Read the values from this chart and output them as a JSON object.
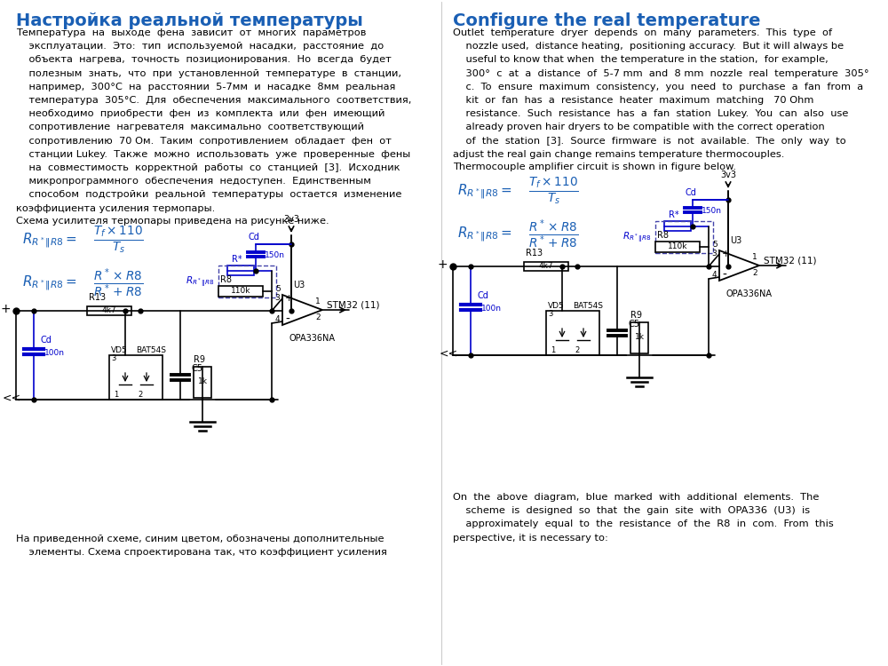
{
  "bg_color": "#ffffff",
  "left_title": "Настройка реальной температуры",
  "left_title_color": "#1a5fb4",
  "right_title": "Configure the real temperature",
  "right_title_color": "#1a5fb4",
  "circuit_color": "#000000",
  "circuit_blue": "#0000cc",
  "formula_color": "#1a5fb4",
  "divider_color": "#cccccc",
  "left_body_lines": [
    "Температура  на  выходе  фена  зависит  от  многих  параметров",
    "    эксплуатации.  Это:  тип  используемой  насадки,  расстояние  до",
    "    объекта  нагрева,  точность  позиционирования.  Но  всегда  будет",
    "    полезным  знать,  что  при  установленной  температуре  в  станции,",
    "    например,  300°C  на  расстоянии  5-7мм  и  насадке  8мм  реальная",
    "    температура  305°C.  Для  обеспечения  максимального  соответствия,",
    "    необходимо  приобрести  фен  из  комплекта  или  фен  имеющий",
    "    сопротивление  нагревателя  максимально  соответствующий",
    "    сопротивлению  70 Ом.  Таким  сопротивлением  обладает  фен  от",
    "    станции Lukey.  Также  можно  использовать  уже  проверенные  фены",
    "    на  совместимость  корректной  работы  со  станцией  [3].  Исходник",
    "    микропрограммного  обеспечения  недоступен.  Единственным",
    "    способом  подстройки  реальной  температуры  остается  изменение",
    "коэффициента усиления термопары."
  ],
  "left_sub": "Схема усилителя термопары приведена на рисунке ниже.",
  "right_body_lines": [
    "Outlet  temperature  dryer  depends  on  many  parameters.  This  type  of",
    "    nozzle used,  distance heating,  positioning accuracy.  But it will always be",
    "    useful to know that when  the temperature in the station,  for example,",
    "    300°  c  at  a  distance  of  5-7 mm  and  8 mm  nozzle  real  temperature  305°",
    "    c.  To  ensure  maximum  consistency,  you  need  to  purchase  a  fan  from  a",
    "    kit  or  fan  has  a  resistance  heater  maximum  matching   70 Ohm",
    "    resistance.  Such  resistance  has  a  fan  station  Lukey.  You  can  also  use",
    "    already proven hair dryers to be compatible with the correct operation",
    "    of  the  station  [3].  Source  firmware  is  not  available.  The  only  way  to",
    "adjust the real gain change remains temperature thermocouples."
  ],
  "right_sub": "Thermocouple amplifier circuit is shown in figure below.",
  "right_bottom_lines": [
    "On  the  above  diagram,  blue  marked  with  additional  elements.  The",
    "    scheme  is  designed  so  that  the  gain  site  with  OPA336  (U3)  is",
    "    approximately  equal  to  the  resistance  of  the  R8  in  com.  From  this",
    "perspective, it is necessary to:"
  ],
  "left_bottom_lines": [
    "На приведенной схеме, синим цветом, обозначены дополнительные",
    "    элементы. Схема спроектирована так, что коэффициент усиления"
  ]
}
